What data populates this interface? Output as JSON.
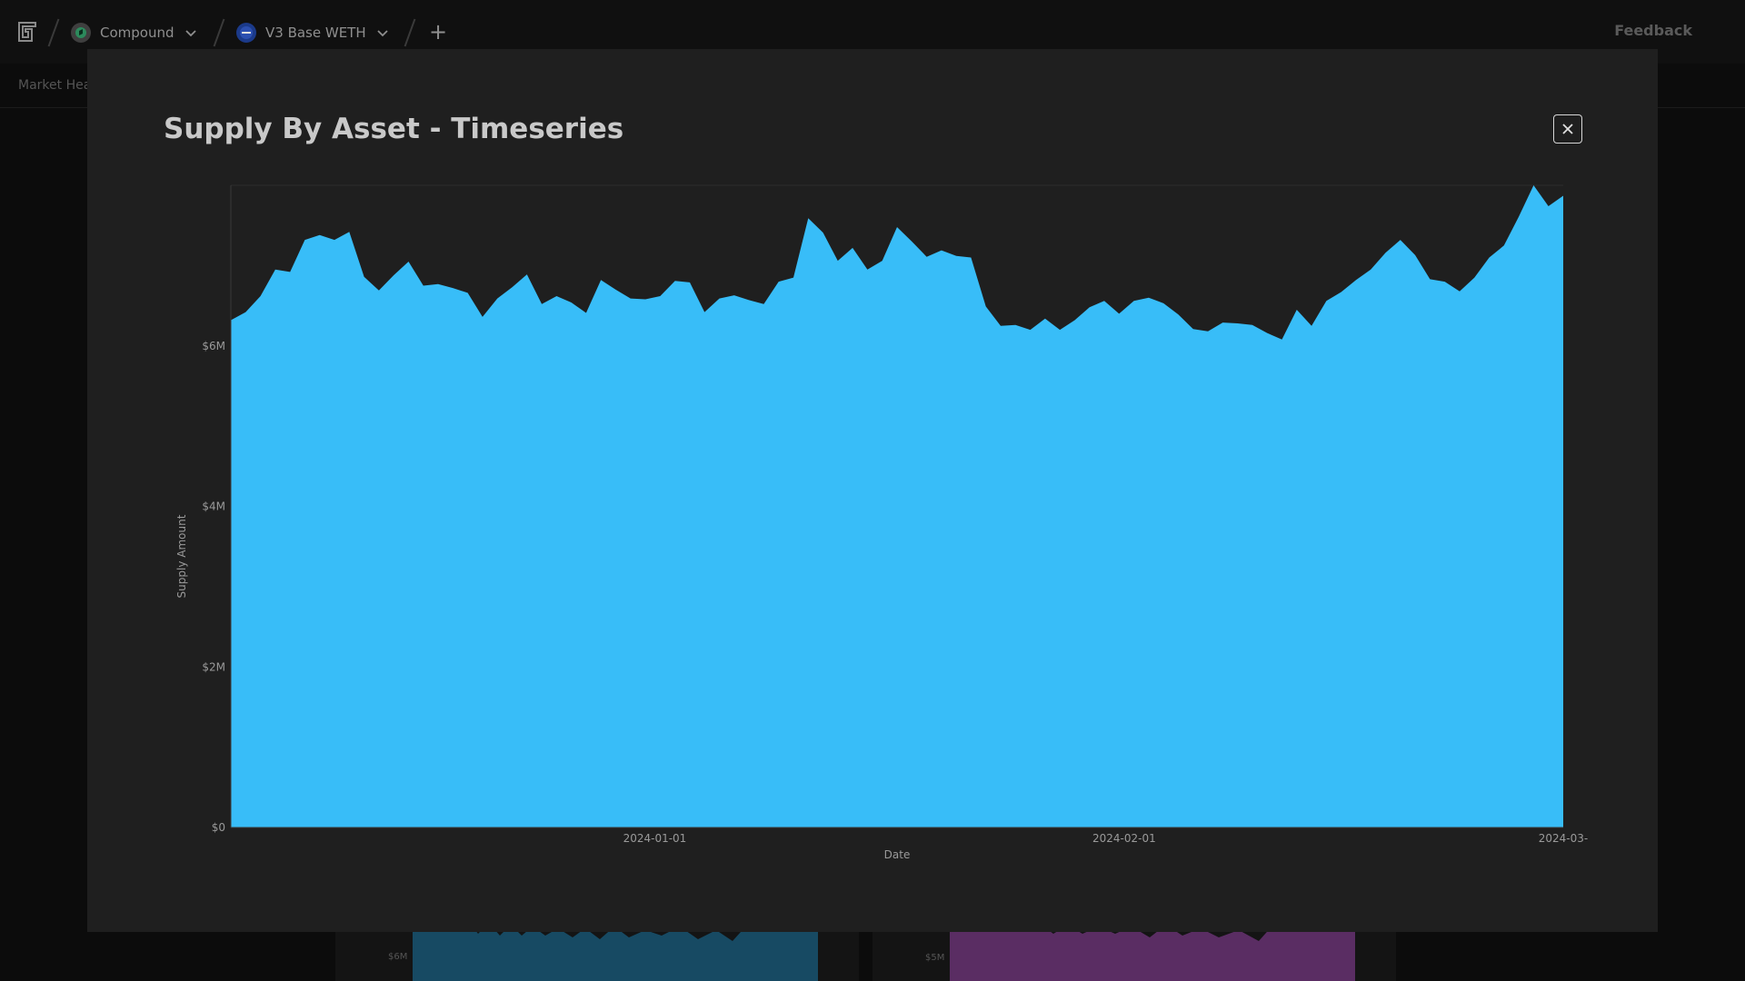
{
  "topbar": {
    "protocol": {
      "name": "Compound",
      "icon": "compound-coin-icon",
      "color": "#2c8a5c"
    },
    "market": {
      "name": "V3 Base WETH",
      "icon": "weth-coin-icon",
      "color": "#1b3a8a"
    },
    "add_symbol": "+",
    "feedback_label": "Feedback"
  },
  "subnav": {
    "first_item": "Market Hea"
  },
  "background_cards": [
    {
      "tick": "$6M",
      "color": "#174a63"
    },
    {
      "tick": "$5M",
      "color": "#5a2d63"
    }
  ],
  "modal": {
    "title": "Supply By Asset - Timeseries",
    "close_icon": "close-icon"
  },
  "chart_data": {
    "type": "area",
    "title": "Supply By Asset - Timeseries",
    "xlabel": "Date",
    "ylabel": "Supply Amount",
    "x_range": [
      "2023-12-04",
      "2024-03-01"
    ],
    "x_ticks": [
      "2024-01-01",
      "2024-02-01",
      "2024-03-"
    ],
    "y_ticks": [
      "$0",
      "$2M",
      "$4M",
      "$6M"
    ],
    "ylim": [
      0,
      8000000
    ],
    "grid": true,
    "fill_color": "#38bdf8",
    "series": [
      {
        "values": [
          6.32,
          6.42,
          6.62,
          6.95,
          6.92,
          7.32,
          7.38,
          7.32,
          7.42,
          6.86,
          6.69,
          6.88,
          7.05,
          6.75,
          6.77,
          6.72,
          6.66,
          6.36,
          6.59,
          6.73,
          6.89,
          6.52,
          6.62,
          6.54,
          6.41,
          6.82,
          6.7,
          6.59,
          6.58,
          6.62,
          6.81,
          6.79,
          6.42,
          6.59,
          6.63,
          6.57,
          6.52,
          6.8,
          6.85,
          7.59,
          7.41,
          7.06,
          7.22,
          6.95,
          7.06,
          7.48,
          7.3,
          7.11,
          7.19,
          7.12,
          7.1,
          6.49,
          6.25,
          6.26,
          6.2,
          6.34,
          6.2,
          6.32,
          6.48,
          6.56,
          6.4,
          6.56,
          6.6,
          6.53,
          6.39,
          6.21,
          6.18,
          6.29,
          6.28,
          6.26,
          6.16,
          6.08,
          6.45,
          6.25,
          6.56,
          6.67,
          6.82,
          6.95,
          7.16,
          7.32,
          7.13,
          6.83,
          6.8,
          6.68,
          6.85,
          7.1,
          7.25,
          7.61,
          8.0,
          7.74,
          7.87
        ]
      }
    ]
  }
}
